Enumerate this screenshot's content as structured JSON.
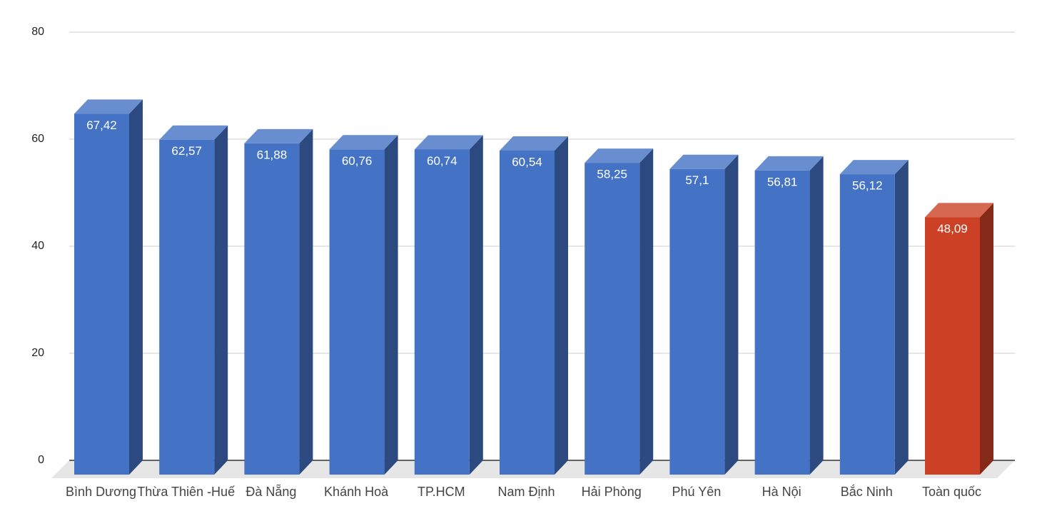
{
  "chart_data": {
    "type": "bar3d",
    "categories": [
      "Bình Dương",
      "Thừa Thiên -Huế",
      "Đà Nẵng",
      "Khánh Hoà",
      "TP.HCM",
      "Nam Định",
      "Hải Phòng",
      "Phú Yên",
      "Hà Nội",
      "Bắc Ninh",
      "Toàn quốc"
    ],
    "values": [
      67.42,
      62.57,
      61.88,
      60.76,
      60.74,
      60.54,
      58.25,
      57.1,
      56.81,
      56.12,
      48.09
    ],
    "value_labels": [
      "67,42",
      "62,57",
      "61,88",
      "60,76",
      "60,74",
      "60,54",
      "58,25",
      "57,1",
      "56,81",
      "56,12",
      "48,09"
    ],
    "colors": [
      "#4472c4",
      "#4472c4",
      "#4472c4",
      "#4472c4",
      "#4472c4",
      "#4472c4",
      "#4472c4",
      "#4472c4",
      "#4472c4",
      "#4472c4",
      "#cc4125"
    ],
    "ylim": [
      0,
      80
    ],
    "yticks": [
      0,
      20,
      40,
      60,
      80
    ],
    "grid": true
  }
}
